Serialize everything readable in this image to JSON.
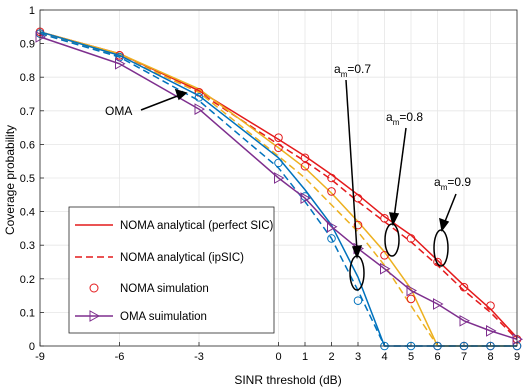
{
  "chart_data": {
    "type": "line",
    "xlabel": "SINR threshold (dB)",
    "ylabel": "Coverage probability",
    "xlim": [
      -9,
      9
    ],
    "ylim": [
      0,
      1
    ],
    "x_ticks": [
      -9,
      -6,
      -3,
      0,
      1,
      2,
      3,
      4,
      5,
      6,
      7,
      8,
      9
    ],
    "y_ticks": [
      0,
      0.1,
      0.2,
      0.3,
      0.4,
      0.5,
      0.6,
      0.7,
      0.8,
      0.9,
      1
    ],
    "grid": true,
    "legend": {
      "placement": "bottom-left",
      "entries": [
        {
          "label": "NOMA analytical (perfect SIC)",
          "style": "solid",
          "color": "#e41a1c"
        },
        {
          "label": "NOMA analytical (ipSIC)",
          "style": "dashed",
          "color": "#e41a1c"
        },
        {
          "label": "NOMA simulation",
          "style": "circle-marker",
          "color": "#e41a1c"
        },
        {
          "label": "OMA suimulation",
          "style": "triangle-line",
          "color": "#7e2f8e"
        }
      ]
    },
    "annotations": [
      {
        "base": "a",
        "sub": "m",
        "rest": "=0.7"
      },
      {
        "base": "a",
        "sub": "m",
        "rest": "=0.8"
      },
      {
        "base": "a",
        "sub": "m",
        "rest": "=0.9"
      },
      {
        "text": "OMA"
      }
    ],
    "colors": {
      "red": "#e41a1c",
      "orange": "#edb120",
      "blue": "#0072bd",
      "purple": "#7e2f8e"
    },
    "x": [
      -9,
      -6,
      -3,
      0,
      1,
      2,
      3,
      4,
      5,
      6,
      7,
      8,
      9
    ],
    "series": [
      {
        "group": "am=0.9",
        "kind": "solid",
        "color": "#e41a1c",
        "values": [
          0.935,
          0.87,
          0.76,
          0.615,
          0.565,
          0.51,
          0.45,
          0.385,
          0.33,
          0.255,
          0.18,
          0.11,
          0.025
        ]
      },
      {
        "group": "am=0.9",
        "kind": "dashed",
        "color": "#e41a1c",
        "values": [
          0.93,
          0.865,
          0.755,
          0.6,
          0.55,
          0.495,
          0.43,
          0.37,
          0.31,
          0.24,
          0.165,
          0.1,
          0.02
        ]
      },
      {
        "group": "am=0.9",
        "kind": "markers",
        "color": "#e41a1c",
        "values": [
          0.935,
          0.865,
          0.755,
          0.62,
          0.56,
          0.5,
          0.44,
          0.38,
          0.32,
          0.25,
          0.175,
          0.12,
          0.02
        ]
      },
      {
        "group": "am=0.8",
        "kind": "solid",
        "color": "#edb120",
        "values": [
          0.935,
          0.87,
          0.765,
          0.59,
          0.53,
          0.455,
          0.37,
          0.28,
          0.17,
          0.0,
          0.0,
          0.0,
          0.0
        ]
      },
      {
        "group": "am=0.8",
        "kind": "dashed",
        "color": "#edb120",
        "values": [
          0.93,
          0.865,
          0.755,
          0.565,
          0.5,
          0.42,
          0.34,
          0.24,
          0.12,
          0.0,
          0.0,
          0.0,
          0.0
        ]
      },
      {
        "group": "am=0.8",
        "kind": "markers",
        "color": "#e41a1c",
        "values": [
          0.93,
          0.865,
          0.755,
          0.59,
          0.535,
          0.46,
          0.36,
          0.27,
          0.14,
          0.0,
          0.0,
          0.0,
          0.0
        ]
      },
      {
        "group": "am=0.7",
        "kind": "solid",
        "color": "#0072bd",
        "values": [
          0.935,
          0.865,
          0.745,
          0.56,
          0.465,
          0.36,
          0.205,
          0.0,
          0.0,
          0.0,
          0.0,
          0.0,
          0.0
        ]
      },
      {
        "group": "am=0.7",
        "kind": "dashed",
        "color": "#0072bd",
        "values": [
          0.93,
          0.86,
          0.73,
          0.53,
          0.43,
          0.32,
          0.165,
          0.0,
          0.0,
          0.0,
          0.0,
          0.0,
          0.0
        ]
      },
      {
        "group": "am=0.7",
        "kind": "markers",
        "color": "#0072bd",
        "values": [
          0.93,
          0.86,
          0.74,
          0.545,
          0.445,
          0.32,
          0.135,
          0.0,
          0.0,
          0.0,
          0.0,
          0.0,
          0.0
        ]
      },
      {
        "group": "OMA",
        "kind": "triangle-line",
        "color": "#7e2f8e",
        "values": [
          0.92,
          0.84,
          0.705,
          0.5,
          0.44,
          0.355,
          0.29,
          0.23,
          0.165,
          0.125,
          0.075,
          0.045,
          0.02
        ]
      }
    ]
  }
}
